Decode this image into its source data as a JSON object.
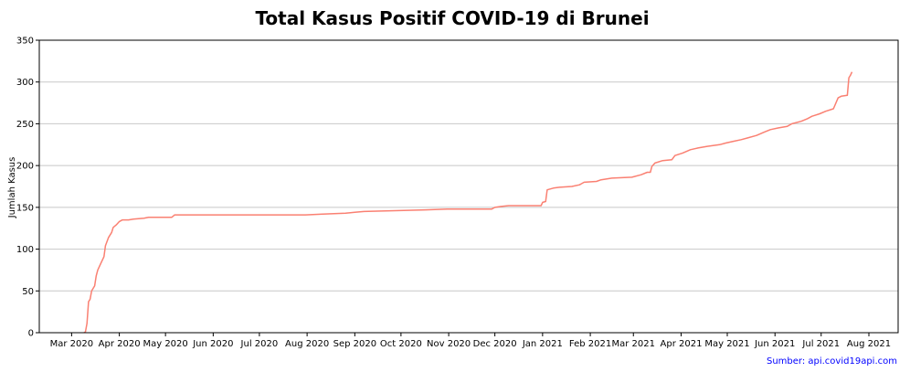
{
  "chart_data": {
    "type": "line",
    "title": "Total Kasus Positif COVID-19 di Brunei",
    "xlabel": "",
    "ylabel": "Jumlah Kasus",
    "ylim": [
      0,
      350
    ],
    "yticks": [
      0,
      50,
      100,
      150,
      200,
      250,
      300,
      350
    ],
    "xlim": [
      "2020-02-09",
      "2021-08-20"
    ],
    "xticks": [
      {
        "date": "2020-03-01",
        "label": "Mar 2020"
      },
      {
        "date": "2020-04-01",
        "label": "Apr 2020"
      },
      {
        "date": "2020-05-01",
        "label": "May 2020"
      },
      {
        "date": "2020-06-01",
        "label": "Jun 2020"
      },
      {
        "date": "2020-07-01",
        "label": "Jul 2020"
      },
      {
        "date": "2020-08-01",
        "label": "Aug 2020"
      },
      {
        "date": "2020-09-01",
        "label": "Sep 2020"
      },
      {
        "date": "2020-10-01",
        "label": "Oct 2020"
      },
      {
        "date": "2020-11-01",
        "label": "Nov 2020"
      },
      {
        "date": "2020-12-01",
        "label": "Dec 2020"
      },
      {
        "date": "2021-01-01",
        "label": "Jan 2021"
      },
      {
        "date": "2021-02-01",
        "label": "Feb 2021"
      },
      {
        "date": "2021-03-01",
        "label": "Mar 2021"
      },
      {
        "date": "2021-04-01",
        "label": "Apr 2021"
      },
      {
        "date": "2021-05-01",
        "label": "May 2021"
      },
      {
        "date": "2021-06-01",
        "label": "Jun 2021"
      },
      {
        "date": "2021-07-01",
        "label": "Jul 2021"
      },
      {
        "date": "2021-08-01",
        "label": "Aug 2021"
      }
    ],
    "grid": "horizontal",
    "line_color": "#fa8072",
    "series": [
      {
        "name": "",
        "points": [
          [
            "2020-03-09",
            0
          ],
          [
            "2020-03-10",
            1
          ],
          [
            "2020-03-11",
            11
          ],
          [
            "2020-03-12",
            37
          ],
          [
            "2020-03-13",
            40
          ],
          [
            "2020-03-14",
            50
          ],
          [
            "2020-03-16",
            56
          ],
          [
            "2020-03-17",
            68
          ],
          [
            "2020-03-18",
            75
          ],
          [
            "2020-03-20",
            83
          ],
          [
            "2020-03-22",
            91
          ],
          [
            "2020-03-23",
            104
          ],
          [
            "2020-03-25",
            114
          ],
          [
            "2020-03-27",
            120
          ],
          [
            "2020-03-28",
            126
          ],
          [
            "2020-03-30",
            129
          ],
          [
            "2020-04-01",
            133
          ],
          [
            "2020-04-03",
            135
          ],
          [
            "2020-04-07",
            135
          ],
          [
            "2020-04-10",
            136
          ],
          [
            "2020-04-17",
            137
          ],
          [
            "2020-04-20",
            138
          ],
          [
            "2020-05-05",
            138
          ],
          [
            "2020-05-07",
            141
          ],
          [
            "2020-07-31",
            141
          ],
          [
            "2020-08-11",
            142
          ],
          [
            "2020-08-26",
            143
          ],
          [
            "2020-09-01",
            144
          ],
          [
            "2020-09-07",
            145
          ],
          [
            "2020-09-27",
            146
          ],
          [
            "2020-10-17",
            147
          ],
          [
            "2020-10-31",
            148
          ],
          [
            "2020-11-29",
            148
          ],
          [
            "2020-12-01",
            150
          ],
          [
            "2020-12-05",
            151
          ],
          [
            "2020-12-10",
            152
          ],
          [
            "2020-12-31",
            152
          ],
          [
            "2021-01-01",
            156
          ],
          [
            "2021-01-03",
            157
          ],
          [
            "2021-01-04",
            171
          ],
          [
            "2021-01-08",
            173
          ],
          [
            "2021-01-12",
            174
          ],
          [
            "2021-01-20",
            175
          ],
          [
            "2021-01-25",
            177
          ],
          [
            "2021-01-28",
            180
          ],
          [
            "2021-02-05",
            181
          ],
          [
            "2021-02-08",
            183
          ],
          [
            "2021-02-15",
            185
          ],
          [
            "2021-02-28",
            186
          ],
          [
            "2021-03-06",
            189
          ],
          [
            "2021-03-10",
            192
          ],
          [
            "2021-03-12",
            192
          ],
          [
            "2021-03-13",
            199
          ],
          [
            "2021-03-15",
            203
          ],
          [
            "2021-03-20",
            206
          ],
          [
            "2021-03-26",
            207
          ],
          [
            "2021-03-28",
            212
          ],
          [
            "2021-04-02",
            215
          ],
          [
            "2021-04-07",
            219
          ],
          [
            "2021-04-12",
            221
          ],
          [
            "2021-04-18",
            223
          ],
          [
            "2021-04-26",
            225
          ],
          [
            "2021-04-30",
            227
          ],
          [
            "2021-05-05",
            229
          ],
          [
            "2021-05-10",
            231
          ],
          [
            "2021-05-14",
            233
          ],
          [
            "2021-05-20",
            236
          ],
          [
            "2021-05-25",
            240
          ],
          [
            "2021-05-29",
            243
          ],
          [
            "2021-06-03",
            245
          ],
          [
            "2021-06-09",
            247
          ],
          [
            "2021-06-12",
            250
          ],
          [
            "2021-06-18",
            253
          ],
          [
            "2021-06-22",
            256
          ],
          [
            "2021-06-25",
            259
          ],
          [
            "2021-06-30",
            262
          ],
          [
            "2021-07-04",
            265
          ],
          [
            "2021-07-09",
            268
          ],
          [
            "2021-07-12",
            281
          ],
          [
            "2021-07-14",
            283
          ],
          [
            "2021-07-18",
            284
          ],
          [
            "2021-07-19",
            305
          ],
          [
            "2021-07-20",
            308
          ],
          [
            "2021-07-21",
            312
          ]
        ]
      }
    ]
  },
  "source_text": "Sumber: api.covid19api.com"
}
